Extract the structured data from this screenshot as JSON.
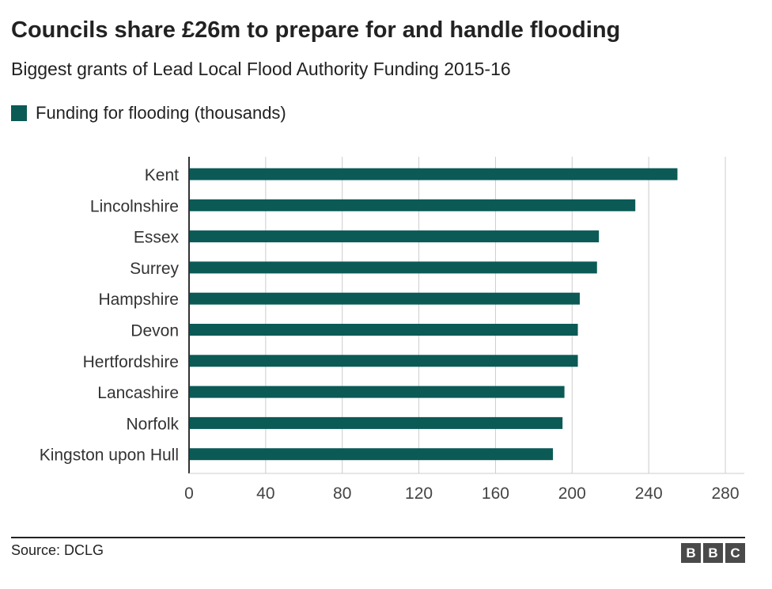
{
  "header": {
    "title": "Councils share £26m to prepare for and handle flooding",
    "subtitle": "Biggest grants of Lead Local Flood Authority Funding 2015-16"
  },
  "footer": {
    "source": "Source: DCLG",
    "logo": [
      "B",
      "B",
      "C"
    ]
  },
  "colors": {
    "bar": "#0b5a56",
    "gridline": "#cccccc",
    "text": "#222222"
  },
  "chart_data": {
    "type": "bar",
    "orientation": "horizontal",
    "categories": [
      "Kent",
      "Lincolnshire",
      "Essex",
      "Surrey",
      "Hampshire",
      "Devon",
      "Hertfordshire",
      "Lancashire",
      "Norfolk",
      "Kingston upon Hull"
    ],
    "series": [
      {
        "name": "Funding for flooding (thousands)",
        "values": [
          255,
          233,
          214,
          213,
          204,
          203,
          203,
          196,
          195,
          190
        ]
      }
    ],
    "xlim": [
      0,
      280
    ],
    "xticks": [
      0,
      40,
      80,
      120,
      160,
      200,
      240,
      280
    ],
    "grid": true,
    "legend_position": "top-left"
  }
}
